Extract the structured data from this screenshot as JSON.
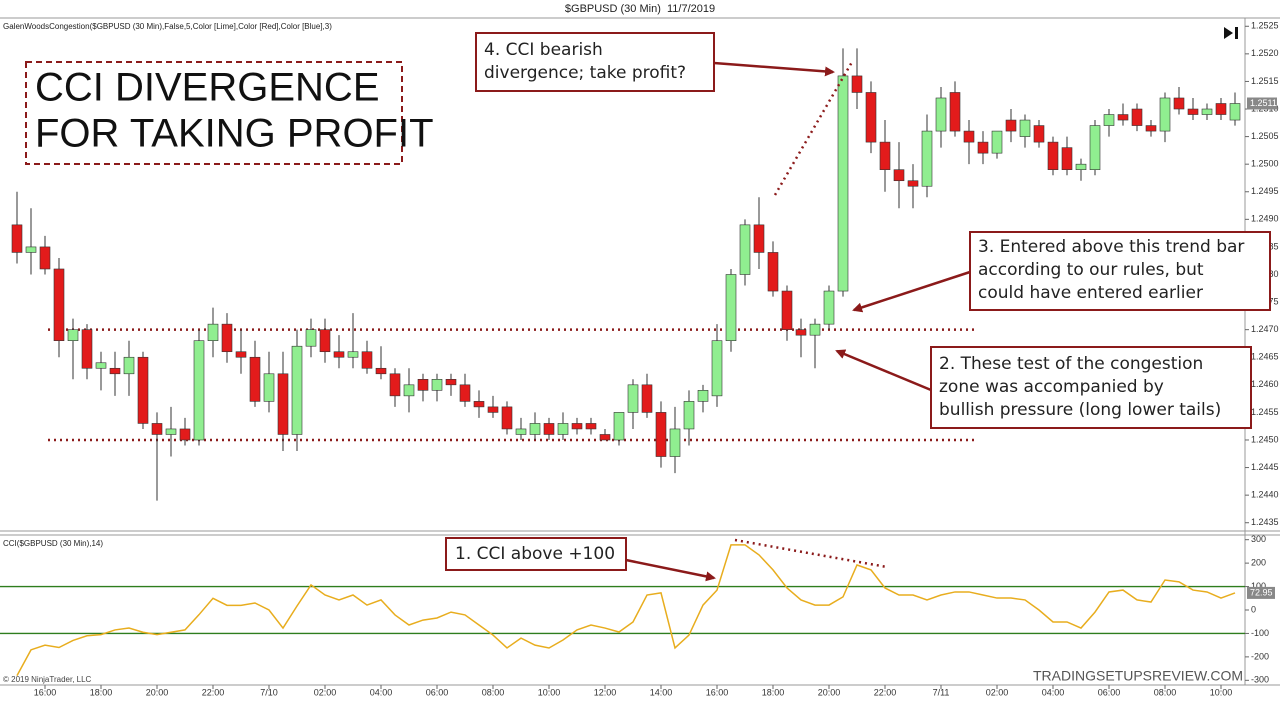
{
  "chart_data": [
    {
      "type": "candlestick",
      "title": "$GBPUSD (30 Min)  11/7/2019",
      "indicator_label": "GalenWoodsCongestion($GBPUSD (30 Min),False,5,Color [Lime],Color [Red],Color [Blue],3)",
      "categories": [
        null,
        null,
        "16:00",
        null,
        null,
        null,
        "18:00",
        null,
        null,
        null,
        "20:00",
        null,
        null,
        null,
        "22:00",
        null,
        null,
        null,
        "7/10",
        null,
        null,
        null,
        "02:00",
        null,
        null,
        null,
        "04:00",
        null,
        null,
        null,
        "06:00",
        null,
        null,
        null,
        "08:00",
        null,
        null,
        null,
        "10:00",
        null,
        null,
        null,
        "12:00",
        null,
        null,
        null,
        "14:00",
        null,
        null,
        null,
        "16:00",
        null,
        null,
        null,
        "18:00",
        null,
        null,
        null,
        "20:00",
        null,
        null,
        null,
        "22:00",
        null,
        null,
        null,
        "7/11",
        null,
        null,
        null,
        "02:00",
        null,
        null,
        null,
        "04:00",
        null,
        null,
        null,
        "06:00",
        null,
        null,
        null,
        "08:00",
        null,
        null,
        null,
        "10:00",
        null
      ],
      "open": [
        1.2489,
        1.2484,
        1.2485,
        1.2481,
        1.2468,
        1.247,
        1.2463,
        1.2463,
        1.2462,
        1.2465,
        1.2453,
        1.2451,
        1.2452,
        1.245,
        1.2468,
        1.2471,
        1.2466,
        1.2465,
        1.2457,
        1.2462,
        1.2451,
        1.2467,
        1.247,
        1.2466,
        1.2465,
        1.2466,
        1.2463,
        1.2462,
        1.2458,
        1.2461,
        1.2459,
        1.2461,
        1.246,
        1.2457,
        1.2456,
        1.2456,
        1.2451,
        1.2451,
        1.2453,
        1.2451,
        1.2453,
        1.2453,
        1.2451,
        1.245,
        1.2455,
        1.246,
        1.2455,
        1.2447,
        1.2452,
        1.2457,
        1.2458,
        1.2468,
        1.248,
        1.2489,
        1.2484,
        1.2477,
        1.247,
        1.2469,
        1.2471,
        1.2477,
        1.2516,
        1.2513,
        1.2504,
        1.2499,
        1.2497,
        1.2496,
        1.2506,
        1.2513,
        1.2506,
        1.2504,
        1.2502,
        1.2508,
        1.2505,
        1.2507,
        1.2504,
        1.2503,
        1.2499,
        1.2499,
        1.2507,
        1.2509,
        1.251,
        1.2507,
        1.2506,
        1.2512,
        1.251,
        1.2509,
        1.2511,
        1.2508
      ],
      "high": [
        1.2495,
        1.2492,
        1.2487,
        1.2483,
        1.2472,
        1.2471,
        1.2466,
        1.2466,
        1.2468,
        1.2466,
        1.2455,
        1.2456,
        1.2454,
        1.247,
        1.2474,
        1.2473,
        1.247,
        1.2468,
        1.2466,
        1.2466,
        1.247,
        1.2472,
        1.2472,
        1.2469,
        1.2473,
        1.2468,
        1.2467,
        1.2463,
        1.2463,
        1.2462,
        1.2462,
        1.2462,
        1.2462,
        1.2459,
        1.2458,
        1.2457,
        1.2454,
        1.2455,
        1.2454,
        1.2455,
        1.2454,
        1.2454,
        1.2452,
        1.2455,
        1.2461,
        1.2462,
        1.2457,
        1.2456,
        1.2459,
        1.246,
        1.2471,
        1.2481,
        1.249,
        1.2494,
        1.2486,
        1.2478,
        1.2472,
        1.2472,
        1.2478,
        1.2521,
        1.2521,
        1.2515,
        1.2508,
        1.2504,
        1.25,
        1.2509,
        1.2514,
        1.2515,
        1.2508,
        1.2506,
        1.2506,
        1.251,
        1.2509,
        1.2508,
        1.2505,
        1.2505,
        1.2501,
        1.2508,
        1.251,
        1.2511,
        1.2511,
        1.2508,
        1.2513,
        1.2514,
        1.2512,
        1.2511,
        1.2512,
        1.2513
      ],
      "low": [
        1.2482,
        1.248,
        1.248,
        1.2465,
        1.2461,
        1.2461,
        1.2459,
        1.2458,
        1.2458,
        1.2452,
        1.2439,
        1.2447,
        1.2449,
        1.2449,
        1.2465,
        1.2464,
        1.2462,
        1.2456,
        1.2455,
        1.2448,
        1.2448,
        1.2465,
        1.2464,
        1.2463,
        1.2463,
        1.2462,
        1.2461,
        1.2456,
        1.2455,
        1.2457,
        1.2457,
        1.2458,
        1.2456,
        1.2454,
        1.2454,
        1.2451,
        1.245,
        1.245,
        1.245,
        1.245,
        1.2451,
        1.2451,
        1.245,
        1.2449,
        1.2452,
        1.2454,
        1.2445,
        1.2444,
        1.2449,
        1.2455,
        1.2456,
        1.2466,
        1.2478,
        1.2481,
        1.2476,
        1.2468,
        1.2465,
        1.2463,
        1.247,
        1.2476,
        1.251,
        1.2502,
        1.2495,
        1.2492,
        1.2492,
        1.2494,
        1.2503,
        1.2505,
        1.25,
        1.25,
        1.2501,
        1.2504,
        1.2503,
        1.2503,
        1.2498,
        1.2498,
        1.2497,
        1.2498,
        1.2505,
        1.2507,
        1.2506,
        1.2505,
        1.2504,
        1.2509,
        1.2508,
        1.2508,
        1.2508,
        1.2507
      ],
      "close": [
        1.2484,
        1.2485,
        1.2481,
        1.2468,
        1.247,
        1.2463,
        1.2464,
        1.2462,
        1.2465,
        1.2453,
        1.2451,
        1.2452,
        1.245,
        1.2468,
        1.2471,
        1.2466,
        1.2465,
        1.2457,
        1.2462,
        1.2451,
        1.2467,
        1.247,
        1.2466,
        1.2465,
        1.2466,
        1.2463,
        1.2462,
        1.2458,
        1.246,
        1.2459,
        1.2461,
        1.246,
        1.2457,
        1.2456,
        1.2455,
        1.2452,
        1.2452,
        1.2453,
        1.2451,
        1.2453,
        1.2452,
        1.2452,
        1.245,
        1.2455,
        1.246,
        1.2455,
        1.2447,
        1.2452,
        1.2457,
        1.2459,
        1.2468,
        1.248,
        1.2489,
        1.2484,
        1.2477,
        1.247,
        1.2469,
        1.2471,
        1.2477,
        1.2516,
        1.2513,
        1.2504,
        1.2499,
        1.2497,
        1.2496,
        1.2506,
        1.2512,
        1.2506,
        1.2504,
        1.2502,
        1.2506,
        1.2506,
        1.2508,
        1.2504,
        1.2499,
        1.2499,
        1.25,
        1.2507,
        1.2509,
        1.2508,
        1.2507,
        1.2506,
        1.2512,
        1.251,
        1.2509,
        1.251,
        1.2509,
        1.2511
      ],
      "up_color": "#90ee90",
      "down_color": "#e21b1b",
      "ylim": [
        1.24335,
        1.25265
      ],
      "yticks": [
        1.2525,
        {
          "value": 1.252,
          "label": "1.2520"
        },
        1.2515,
        {
          "value": 1.251,
          "label": "1.2510"
        },
        1.2505,
        {
          "value": 1.25,
          "label": "1.2500"
        },
        1.2495,
        {
          "value": 1.249,
          "label": "1.2490"
        },
        1.2485,
        {
          "value": 1.248,
          "label": "1.2480"
        },
        1.2475,
        {
          "value": 1.247,
          "label": "1.2470"
        },
        1.2465,
        {
          "value": 1.246,
          "label": "1.2460"
        },
        1.2455,
        {
          "value": 1.245,
          "label": "1.2450"
        },
        1.2445,
        {
          "value": 1.244,
          "label": "1.2440"
        },
        1.2435
      ],
      "last_price": 1.2511,
      "levels": [
        1.247,
        1.245
      ],
      "title_box": [
        "CCI DIVERGENCE",
        "FOR TAKING PROFIT"
      ],
      "annotations": [
        {
          "lines": [
            "1. CCI above +100"
          ]
        },
        {
          "lines": [
            "2. These test of the congestion",
            "zone was accompanied by",
            "bullish pressure (long lower tails)"
          ]
        },
        {
          "lines": [
            "3. Entered above this trend bar",
            "according to our rules, but",
            "could have entered earlier"
          ]
        },
        {
          "lines": [
            "4. CCI bearish",
            "divergence; take profit?"
          ]
        }
      ],
      "copyright": "© 2019 NinjaTrader, LLC",
      "watermark": "TRADINGSETUPSREVIEW.COM"
    },
    {
      "type": "line",
      "title": "CCI($GBPUSD (30 Min),14)",
      "color": "#e8ad1e",
      "values": [
        -280,
        -170,
        -150,
        -160,
        -130,
        -110,
        -105,
        -85,
        -77,
        -95,
        -105,
        -95,
        -85,
        -20,
        50,
        20,
        20,
        30,
        0,
        -77,
        17,
        107,
        64,
        43,
        64,
        21,
        43,
        -21,
        -64,
        -43,
        -34,
        -9,
        -21,
        -64,
        -107,
        -162,
        -120,
        -150,
        -162,
        -128,
        -85,
        -64,
        -77,
        -94,
        -51,
        64,
        73,
        -162,
        -107,
        21,
        85,
        278,
        278,
        235,
        171,
        94,
        43,
        21,
        21,
        56,
        192,
        171,
        94,
        64,
        64,
        43,
        64,
        77,
        77,
        64,
        51,
        51,
        43,
        0,
        -51,
        -51,
        -77,
        -9,
        77,
        85,
        43,
        34,
        128,
        120,
        85,
        77,
        51,
        72.95
      ],
      "ylim": [
        -320,
        320
      ],
      "yticks": [
        300,
        200,
        100,
        0,
        -100,
        -200,
        -300
      ],
      "reference_lines": [
        100,
        -100
      ],
      "reference_color": "#2e7d1e",
      "last_value": 72.95
    }
  ]
}
